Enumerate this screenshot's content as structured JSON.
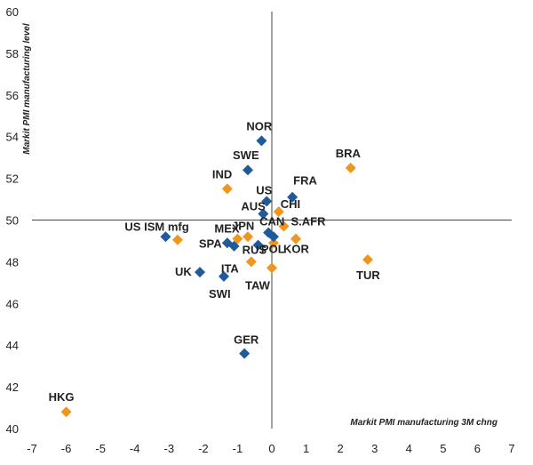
{
  "chart_data": {
    "type": "scatter",
    "xlabel": "Markit PMI manufacturing 3M chng",
    "ylabel": "Markit PMI manufacturing level",
    "xlim": [
      -7,
      7
    ],
    "ylim": [
      40,
      60
    ],
    "x_ticks": [
      -7,
      -6,
      -5,
      -4,
      -3,
      -2,
      -1,
      0,
      1,
      2,
      3,
      4,
      5,
      6,
      7
    ],
    "y_ticks": [
      40,
      42,
      44,
      46,
      48,
      50,
      52,
      54,
      56,
      58,
      60
    ],
    "crosshair": {
      "x": 0,
      "y": 50
    },
    "grid": false,
    "colors": {
      "blue": "#1f5b9a",
      "orange": "#f0961e"
    },
    "points": [
      {
        "label": "NOR",
        "x": -0.3,
        "y": 53.8,
        "color": "blue"
      },
      {
        "label": "SWE",
        "x": -0.7,
        "y": 52.4,
        "color": "blue"
      },
      {
        "label": "BRA",
        "x": 2.3,
        "y": 52.5,
        "color": "orange"
      },
      {
        "label": "IND",
        "x": -1.3,
        "y": 51.5,
        "color": "orange"
      },
      {
        "label": "FRA",
        "x": 0.6,
        "y": 51.1,
        "color": "blue"
      },
      {
        "label": "US",
        "x": -0.15,
        "y": 50.9,
        "color": "blue"
      },
      {
        "label": "AUS",
        "x": -0.25,
        "y": 50.3,
        "color": "blue"
      },
      {
        "label": "CHI",
        "x": 0.2,
        "y": 50.4,
        "color": "orange"
      },
      {
        "label": "S.AFR",
        "x": 0.35,
        "y": 49.7,
        "color": "orange"
      },
      {
        "label": "CAN",
        "x": -0.1,
        "y": 49.4,
        "color": "blue"
      },
      {
        "label": "JPN",
        "x": -0.7,
        "y": 49.2,
        "color": "orange"
      },
      {
        "label": "MEX",
        "x": -1.0,
        "y": 49.1,
        "color": "orange"
      },
      {
        "label": "US ISM mfg",
        "x": -3.1,
        "y": 49.2,
        "color": "blue"
      },
      {
        "label": "",
        "x": -2.75,
        "y": 49.05,
        "color": "orange"
      },
      {
        "label": "SPA",
        "x": -1.3,
        "y": 48.9,
        "color": "blue"
      },
      {
        "label": "",
        "x": -1.1,
        "y": 48.75,
        "color": "blue"
      },
      {
        "label": "RUS",
        "x": -0.4,
        "y": 48.8,
        "color": "blue"
      },
      {
        "label": "",
        "x": 0.05,
        "y": 48.9,
        "color": "orange"
      },
      {
        "label": "KOR",
        "x": 0.7,
        "y": 49.1,
        "color": "orange"
      },
      {
        "label": "POL",
        "x": 0.05,
        "y": 49.2,
        "color": "blue"
      },
      {
        "label": "ITA",
        "x": -0.6,
        "y": 48.0,
        "color": "orange"
      },
      {
        "label": "TUR",
        "x": 2.8,
        "y": 48.1,
        "color": "orange"
      },
      {
        "label": "UK",
        "x": -2.1,
        "y": 47.5,
        "color": "blue"
      },
      {
        "label": "TAW",
        "x": 0.0,
        "y": 47.7,
        "color": "orange"
      },
      {
        "label": "SWI",
        "x": -1.4,
        "y": 47.3,
        "color": "blue"
      },
      {
        "label": "GER",
        "x": -0.8,
        "y": 43.6,
        "color": "blue"
      },
      {
        "label": "HKG",
        "x": -6.0,
        "y": 40.8,
        "color": "orange"
      }
    ]
  }
}
